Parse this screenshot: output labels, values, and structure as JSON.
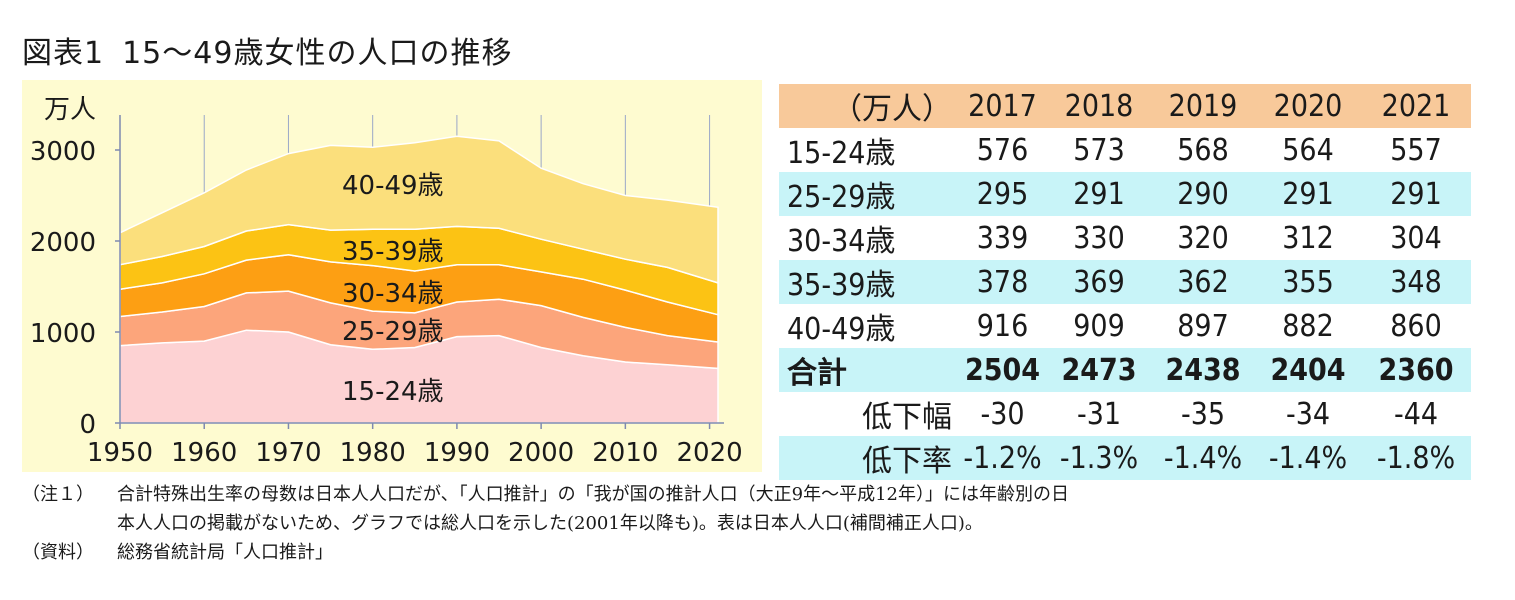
{
  "title": {
    "number": "図表1",
    "text": "15～49歳女性の人口の推移"
  },
  "chart_data": {
    "type": "area",
    "stacked": true,
    "title": "15～49歳女性の人口の推移",
    "ylabel": "万人",
    "xlabel": "",
    "xlim": [
      1950,
      2021
    ],
    "ylim": [
      0,
      3000
    ],
    "xticks": [
      1950,
      1960,
      1970,
      1980,
      1990,
      2000,
      2010,
      2020
    ],
    "yticks": [
      0,
      1000,
      2000,
      3000
    ],
    "x": [
      1950,
      1955,
      1960,
      1965,
      1970,
      1975,
      1980,
      1985,
      1990,
      1995,
      2000,
      2005,
      2010,
      2015,
      2021
    ],
    "series": [
      {
        "name": "15-24歳",
        "color": "#fdd2d3",
        "values": [
          850,
          880,
          900,
          1020,
          1000,
          860,
          810,
          830,
          950,
          960,
          830,
          740,
          670,
          640,
          600
        ]
      },
      {
        "name": "25-29歳",
        "color": "#fca57b",
        "values": [
          320,
          340,
          380,
          410,
          450,
          460,
          420,
          380,
          380,
          400,
          460,
          420,
          380,
          320,
          290
        ]
      },
      {
        "name": "30-34歳",
        "color": "#fd9f13",
        "values": [
          300,
          320,
          360,
          360,
          400,
          450,
          500,
          460,
          410,
          380,
          370,
          420,
          410,
          370,
          300
        ]
      },
      {
        "name": "35-39歳",
        "color": "#fcc314",
        "values": [
          270,
          290,
          300,
          320,
          330,
          350,
          400,
          460,
          420,
          400,
          360,
          330,
          340,
          380,
          350
        ]
      },
      {
        "name": "40-49歳",
        "color": "#fbdf7c",
        "values": [
          350,
          480,
          590,
          670,
          780,
          930,
          900,
          950,
          990,
          960,
          780,
          720,
          700,
          740,
          830
        ]
      }
    ]
  },
  "table": {
    "unit_label": "（万人）",
    "years": [
      "2017",
      "2018",
      "2019",
      "2020",
      "2021"
    ],
    "rows": [
      {
        "label": "15-24歳",
        "values": [
          "576",
          "573",
          "568",
          "564",
          "557"
        ]
      },
      {
        "label": "25-29歳",
        "values": [
          "295",
          "291",
          "290",
          "291",
          "291"
        ]
      },
      {
        "label": "30-34歳",
        "values": [
          "339",
          "330",
          "320",
          "312",
          "304"
        ]
      },
      {
        "label": "35-39歳",
        "values": [
          "378",
          "369",
          "362",
          "355",
          "348"
        ]
      },
      {
        "label": "40-49歳",
        "values": [
          "916",
          "909",
          "897",
          "882",
          "860"
        ]
      }
    ],
    "total": {
      "label": "合計",
      "values": [
        "2504",
        "2473",
        "2438",
        "2404",
        "2360"
      ]
    },
    "decrease": {
      "label": "低下幅",
      "values": [
        "-30",
        "-31",
        "-35",
        "-34",
        "-44"
      ]
    },
    "rate": {
      "label": "低下率",
      "values": [
        "-1.2%",
        "-1.3%",
        "-1.4%",
        "-1.4%",
        "-1.8%"
      ]
    }
  },
  "notes": {
    "note1_label": "（注１）",
    "note1_line1": "合計特殊出生率の母数は日本人人口だが、「人口推計」の「我が国の推計人口（大正9年～平成12年）」には年齢別の日",
    "note1_line2": "本人人口の掲載がないため、グラフでは総人口を示した(2001年以降も)。表は日本人人口(補間補正人口)。",
    "source_label": "（資料）",
    "source_text": "総務省統計局「人口推計」"
  },
  "colors": {
    "plot_background": "#fefbd0",
    "table_header": "#f8c99a",
    "table_alt_row": "#c8f4f8"
  }
}
